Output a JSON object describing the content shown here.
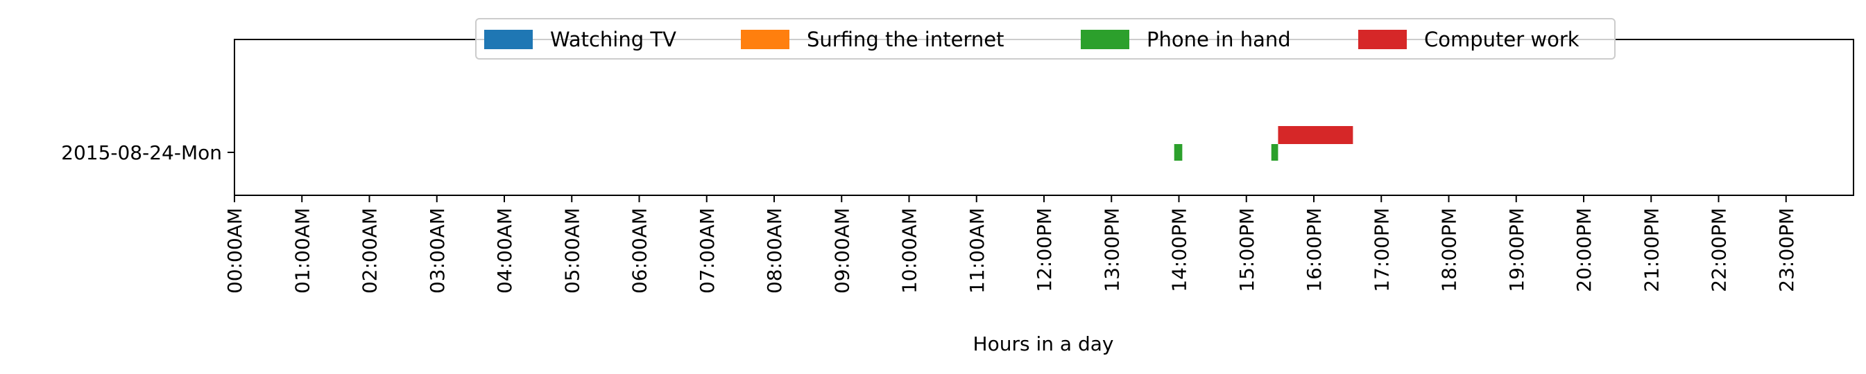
{
  "chart_data": {
    "type": "timeline",
    "xlabel": "Hours in a day",
    "xlim": [
      0,
      24
    ],
    "x_ticks": [
      "00:00AM",
      "01:00AM",
      "02:00AM",
      "03:00AM",
      "04:00AM",
      "05:00AM",
      "06:00AM",
      "07:00AM",
      "08:00AM",
      "09:00AM",
      "10:00AM",
      "11:00AM",
      "12:00PM",
      "13:00PM",
      "14:00PM",
      "15:00PM",
      "16:00PM",
      "17:00PM",
      "18:00PM",
      "19:00PM",
      "20:00PM",
      "21:00PM",
      "22:00PM",
      "23:00PM"
    ],
    "rows": [
      "2015-08-24-Mon"
    ],
    "legend_position": "top-center",
    "legend": [
      {
        "name": "Watching TV",
        "color": "#1f77b4"
      },
      {
        "name": "Surfing the internet",
        "color": "#ff7f0e"
      },
      {
        "name": "Phone in hand",
        "color": "#2ca02c"
      },
      {
        "name": "Computer work",
        "color": "#d62728"
      }
    ],
    "segments": [
      {
        "row": "2015-08-24-Mon",
        "activity": "Phone in hand",
        "start": 13.93,
        "end": 14.05
      },
      {
        "row": "2015-08-24-Mon",
        "activity": "Phone in hand",
        "start": 15.37,
        "end": 15.47
      },
      {
        "row": "2015-08-24-Mon",
        "activity": "Computer work",
        "start": 15.47,
        "end": 16.58
      }
    ]
  }
}
